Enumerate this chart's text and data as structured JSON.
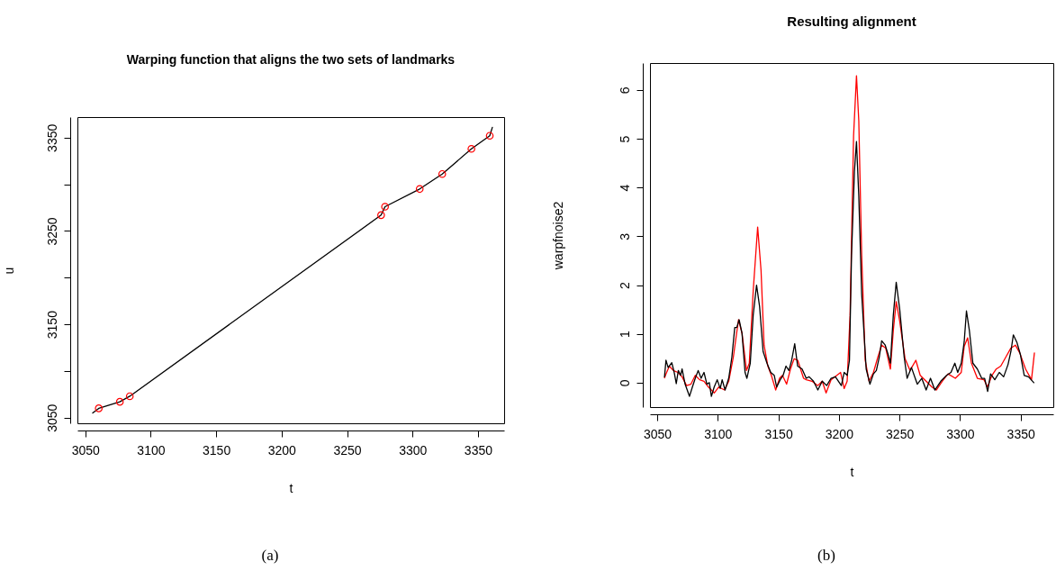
{
  "chart_data": [
    {
      "type": "line",
      "title": "Warping function that aligns the two sets of landmarks",
      "xlabel": "t",
      "ylabel": "u",
      "annotations": [
        "(a)"
      ],
      "xlim": [
        3044,
        3370
      ],
      "ylim": [
        3044,
        3372
      ],
      "xticks": [
        3050,
        3100,
        3150,
        3200,
        3250,
        3300,
        3350
      ],
      "yticks": [
        3050,
        {
          "value": 3100,
          "label": null
        },
        3150,
        {
          "value": 3200,
          "label": null
        },
        3250,
        {
          "value": 3300,
          "label": null
        },
        3350
      ],
      "grid": false,
      "series": [
        {
          "type": "line",
          "color": "#000000",
          "line_style": "solid",
          "x": [
            3055.7,
            3060.3,
            3076.4,
            3084,
            3276,
            3279,
            3305.5,
            3322.7,
            3345,
            3359,
            3361
          ],
          "values": [
            3055,
            3060,
            3067,
            3073,
            3267,
            3276,
            3295,
            3311,
            3338,
            3352,
            3361
          ]
        },
        {
          "type": "scatter",
          "color": "#ff0000",
          "marker": "circle",
          "x": [
            3060.3,
            3076.4,
            3084,
            3276,
            3279,
            3305.5,
            3322.7,
            3345,
            3359
          ],
          "values": [
            3060,
            3067,
            3073,
            3267,
            3276,
            3295,
            3311,
            3338,
            3352
          ]
        }
      ]
    },
    {
      "type": "line",
      "title": "Resulting alignment",
      "xlabel": "t",
      "ylabel": "warpfnoise2",
      "annotations": [
        "(b)"
      ],
      "xlim": [
        3044,
        3377
      ],
      "ylim": [
        -0.5,
        6.55
      ],
      "xticks": [
        3050,
        3100,
        3150,
        3200,
        3250,
        3300,
        3350
      ],
      "yticks": [
        0,
        1,
        2,
        3,
        4,
        5,
        6
      ],
      "grid": false,
      "series": [
        {
          "type": "line",
          "color": "#ff0000",
          "line_style": "solid",
          "x": [
            3056,
            3057.2,
            3060,
            3063.3,
            3067,
            3070.5,
            3074.2,
            3077.8,
            3081.4,
            3085,
            3088.6,
            3092.3,
            3097,
            3100.7,
            3105.6,
            3109,
            3112.8,
            3117.1,
            3120,
            3123.7,
            3126,
            3129.2,
            3132.9,
            3135.7,
            3138.2,
            3141.3,
            3144.2,
            3147.8,
            3151,
            3153.4,
            3156.8,
            3160,
            3163,
            3166,
            3170.8,
            3173,
            3177.8,
            3182.6,
            3186.2,
            3189.4,
            3193.5,
            3198.3,
            3201.4,
            3204.3,
            3206.8,
            3209.2,
            3212.1,
            3214.5,
            3216.4,
            3218.8,
            3221.7,
            3224.9,
            3228.5,
            3232.1,
            3235.3,
            3238.6,
            3242.5,
            3244.9,
            3247.3,
            3250.2,
            3254.6,
            3258.7,
            3263.5,
            3267.1,
            3272,
            3276.8,
            3280.4,
            3285.3,
            3290.1,
            3296.1,
            3301,
            3303.4,
            3306.3,
            3309.4,
            3314.3,
            3319.8,
            3322.7,
            3326.3,
            3329.9,
            3333.6,
            3337.7,
            3342,
            3345.7,
            3349.3,
            3354.1,
            3359,
            3361.4
          ],
          "values": [
            0.1,
            0.18,
            0.34,
            0.25,
            0.21,
            0.12,
            -0.06,
            -0.03,
            0.15,
            0.06,
            0.03,
            -0.09,
            -0.21,
            -0.09,
            -0.15,
            0.03,
            0.52,
            1.29,
            1.01,
            0.25,
            0.4,
            1.87,
            3.19,
            2.3,
            0.77,
            0.34,
            0.15,
            -0.15,
            0.09,
            0.15,
            -0.03,
            0.28,
            0.49,
            0.46,
            0.09,
            0.06,
            0.03,
            -0.06,
            0.03,
            -0.21,
            0.06,
            0.15,
            0.21,
            -0.12,
            0.03,
            1.38,
            5.06,
            6.29,
            5.37,
            2.61,
            0.46,
            0.03,
            0.21,
            0.52,
            0.77,
            0.71,
            0.28,
            1.07,
            1.66,
            1.26,
            0.49,
            0.25,
            0.46,
            0.15,
            0.03,
            -0.09,
            -0.15,
            0.03,
            0.18,
            0.09,
            0.21,
            0.74,
            0.92,
            0.4,
            0.09,
            0.06,
            -0.09,
            0.15,
            0.28,
            0.34,
            0.52,
            0.71,
            0.77,
            0.61,
            0.28,
            0.06,
            0.61
          ]
        },
        {
          "type": "line",
          "color": "#000000",
          "line_style": "solid",
          "x": [
            3056,
            3057.2,
            3059,
            3062,
            3064,
            3065.7,
            3067.4,
            3069.3,
            3070.5,
            3073,
            3076.6,
            3079,
            3081.4,
            3083.8,
            3086.2,
            3088.6,
            3091,
            3093,
            3094.7,
            3097,
            3099.5,
            3102,
            3103.6,
            3106,
            3109,
            3111.6,
            3114,
            3115.7,
            3117.6,
            3120,
            3122.5,
            3124,
            3126.8,
            3129.2,
            3132,
            3134.5,
            3137.4,
            3140.6,
            3143.7,
            3146.6,
            3148.6,
            3151.5,
            3153.9,
            3156.3,
            3158.7,
            3161,
            3163.5,
            3165.9,
            3169.6,
            3173,
            3175.4,
            3179,
            3182.6,
            3186.2,
            3189.9,
            3193.5,
            3197.1,
            3202,
            3204.3,
            3206.8,
            3208.7,
            3210.4,
            3212.8,
            3214.5,
            3216.4,
            3218.8,
            3222.5,
            3225.6,
            3228.5,
            3230.9,
            3233.3,
            3235.3,
            3238.2,
            3240.6,
            3242.5,
            3244.9,
            3247.3,
            3250.2,
            3253.9,
            3256.3,
            3259.9,
            3264.7,
            3268.4,
            3272,
            3275.6,
            3279.2,
            3284.1,
            3288.9,
            3292.5,
            3295.7,
            3298.1,
            3301,
            3303.4,
            3305.3,
            3307.7,
            3310.6,
            3314.3,
            3317.9,
            3320.3,
            3322.8,
            3325.2,
            3328.7,
            3332.4,
            3336,
            3339.6,
            3342,
            3344,
            3346.9,
            3349.8,
            3353,
            3356.5,
            3360.9
          ],
          "values": [
            0.12,
            0.46,
            0.31,
            0.41,
            0.21,
            -0.02,
            0.25,
            0.15,
            0.28,
            -0.03,
            -0.28,
            -0.09,
            0.09,
            0.25,
            0.09,
            0.21,
            -0.03,
            0,
            -0.28,
            -0.09,
            0.06,
            -0.12,
            0.06,
            -0.15,
            0.09,
            0.52,
            1.13,
            1.13,
            1.29,
            1.01,
            0.21,
            0.09,
            0.4,
            1.38,
            2.0,
            1.56,
            0.64,
            0.4,
            0.21,
            0.15,
            -0.09,
            0.06,
            0.15,
            0.34,
            0.25,
            0.46,
            0.8,
            0.34,
            0.28,
            0.09,
            0.12,
            0.03,
            -0.15,
            0.03,
            -0.06,
            0.09,
            0.12,
            -0.06,
            0.21,
            0.15,
            0.46,
            2.61,
            4.33,
            4.94,
            3.83,
            1.81,
            0.28,
            -0.03,
            0.18,
            0.25,
            0.52,
            0.86,
            0.77,
            0.58,
            0.4,
            1.38,
            2.06,
            1.5,
            0.52,
            0.09,
            0.31,
            -0.03,
            0.09,
            -0.15,
            0.09,
            -0.15,
            0.03,
            0.15,
            0.21,
            0.4,
            0.21,
            0.4,
            0.83,
            1.47,
            1.07,
            0.4,
            0.28,
            0.09,
            0.09,
            -0.18,
            0.18,
            0.06,
            0.21,
            0.12,
            0.37,
            0.64,
            0.98,
            0.83,
            0.58,
            0.15,
            0.12,
            0
          ]
        }
      ]
    }
  ]
}
